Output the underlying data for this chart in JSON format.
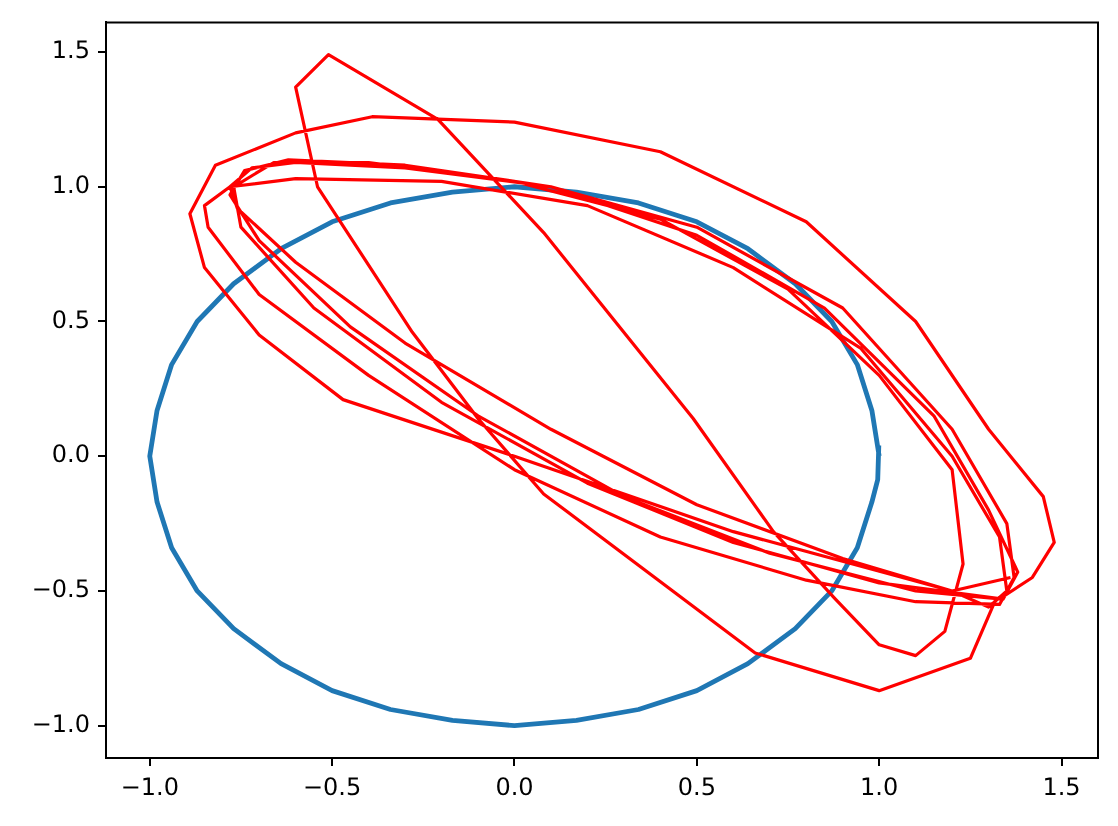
{
  "chart_data": {
    "type": "line",
    "marker": "none",
    "grid": false,
    "legend": false,
    "xlim": [
      -1.12,
      1.6
    ],
    "ylim": [
      -1.12,
      1.61
    ],
    "xticks": [
      {
        "value": -1,
        "label": "−1.0"
      },
      {
        "value": -0.5,
        "label": "−0.5"
      },
      {
        "value": 0,
        "label": "0.0"
      },
      {
        "value": 0.5,
        "label": "0.5"
      },
      {
        "value": 1,
        "label": "1.0"
      },
      {
        "value": 1.5,
        "label": "1.5"
      }
    ],
    "yticks": [
      {
        "value": -1,
        "label": "−1.0"
      },
      {
        "value": -0.5,
        "label": "−0.5"
      },
      {
        "value": 0,
        "label": "0.0"
      },
      {
        "value": 0.5,
        "label": "0.5"
      },
      {
        "value": 1,
        "label": "1.0"
      },
      {
        "value": 1.5,
        "label": "1.5"
      }
    ],
    "series": [
      {
        "color": "#1f77b4",
        "x": [
          1,
          0.98,
          0.94,
          0.87,
          0.77,
          0.64,
          0.5,
          0.34,
          0.17,
          0,
          -0.17,
          -0.34,
          -0.5,
          -0.64,
          -0.77,
          -0.87,
          -0.94,
          -0.98,
          -1,
          -0.98,
          -0.94,
          -0.87,
          -0.77,
          -0.64,
          -0.5,
          -0.34,
          -0.17,
          0,
          0.17,
          0.34,
          0.5,
          0.64,
          0.77,
          0.87,
          0.94,
          0.98,
          0.996,
          0.999
        ],
        "values": [
          0,
          0.17,
          0.34,
          0.5,
          0.64,
          0.77,
          0.87,
          0.94,
          0.98,
          1,
          0.98,
          0.94,
          0.87,
          0.77,
          0.64,
          0.5,
          0.34,
          0.17,
          0,
          -0.17,
          -0.34,
          -0.5,
          -0.64,
          -0.77,
          -0.87,
          -0.94,
          -0.98,
          -1,
          -0.98,
          -0.94,
          -0.87,
          -0.77,
          -0.64,
          -0.5,
          -0.34,
          -0.17,
          -0.087,
          0.04
        ]
      },
      {
        "color": "#ff0000",
        "x": [
          1.36,
          1.2,
          0.9,
          0.5,
          0.1,
          -0.3,
          -0.6,
          -0.76,
          -0.78,
          -0.72,
          -0.6,
          -0.3,
          0.1,
          0.5,
          0.9,
          1.2,
          1.35,
          1.37,
          1.33,
          1.1,
          0.8,
          0.4,
          0,
          -0.4,
          -0.7,
          -0.84,
          -0.85,
          -0.78,
          -0.6,
          -0.2,
          0.2,
          0.6,
          0.95,
          1.2,
          1.33,
          1.35,
          1.3,
          1.2,
          0.6,
          0,
          -0.47,
          -0.7,
          -0.85,
          -0.89,
          -0.82,
          -0.6,
          -0.39,
          0,
          0.4,
          0.8,
          1.1,
          1.3,
          1.45,
          1.48,
          1.42,
          1.33,
          1.1,
          0.7,
          0.3,
          -0.1,
          -0.45,
          -0.7,
          -0.78,
          -0.74,
          -0.62,
          -0.3,
          0.1,
          0.5,
          0.85,
          1.15,
          1.3,
          1.38,
          1.34,
          1,
          0.6,
          0.2,
          -0.2,
          -0.55,
          -0.75,
          -0.77,
          -0.66,
          -0.4,
          0,
          0.4,
          0.75,
          1,
          1.2,
          1.23,
          1.18,
          1.1,
          1,
          0.88,
          0.71,
          0.49,
          0.08,
          -0.21,
          -0.51,
          -0.6,
          -0.54,
          -0.28,
          -0.1,
          0.08,
          0.66,
          1,
          1.25,
          1.32
        ],
        "values": [
          -0.45,
          -0.5,
          -0.38,
          -0.18,
          0.1,
          0.42,
          0.72,
          0.92,
          1,
          1.07,
          1.09,
          1.07,
          1,
          0.85,
          0.55,
          0.1,
          -0.25,
          -0.45,
          -0.55,
          -0.54,
          -0.46,
          -0.3,
          -0.05,
          0.3,
          0.6,
          0.85,
          0.93,
          1,
          1.03,
          1.02,
          0.93,
          0.7,
          0.4,
          0,
          -0.3,
          -0.5,
          -0.56,
          -0.5,
          -0.28,
          0,
          0.21,
          0.45,
          0.7,
          0.9,
          1.08,
          1.2,
          1.26,
          1.24,
          1.13,
          0.87,
          0.5,
          0.1,
          -0.15,
          -0.32,
          -0.45,
          -0.53,
          -0.5,
          -0.36,
          -0.15,
          0.15,
          0.48,
          0.8,
          0.97,
          1.06,
          1.1,
          1.08,
          1,
          0.82,
          0.55,
          0.15,
          -0.2,
          -0.43,
          -0.53,
          -0.47,
          -0.32,
          -0.1,
          0.2,
          0.55,
          0.85,
          1,
          1.09,
          1.09,
          1.02,
          0.88,
          0.62,
          0.3,
          -0.05,
          -0.4,
          -0.65,
          -0.74,
          -0.7,
          -0.53,
          -0.28,
          0.14,
          0.83,
          1.25,
          1.49,
          1.37,
          1,
          0.46,
          0.14,
          -0.14,
          -0.73,
          -0.87,
          -0.75,
          -0.53
        ]
      }
    ]
  }
}
